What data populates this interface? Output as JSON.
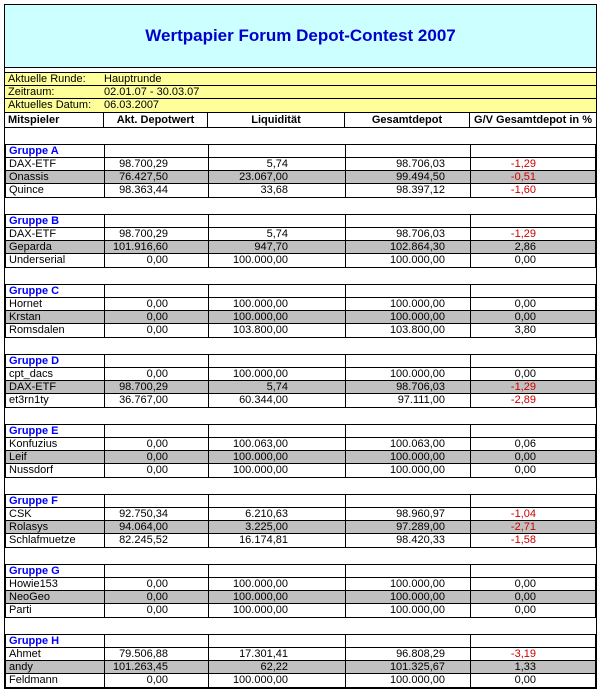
{
  "title": "Wertpapier Forum Depot-Contest 2007",
  "info": {
    "rows": [
      {
        "label": "Aktuelle Runde:",
        "value": "Hauptrunde"
      },
      {
        "label": "Zeitraum:",
        "value": "02.01.07 - 30.03.07"
      },
      {
        "label": "Aktuelles Datum:",
        "value": "06.03.2007"
      }
    ]
  },
  "columns": [
    "Mitspieler",
    "Akt. Depotwert",
    "Liquidität",
    "Gesamtdepot",
    "G/V Gesamtdepot in %"
  ],
  "groups": [
    {
      "name": "Gruppe A",
      "rows": [
        {
          "player": "DAX-ETF",
          "depotwert": "98.700,29",
          "liquiditaet": "5,74",
          "gesamtdepot": "98.706,03",
          "gv_percent": "-1,29"
        },
        {
          "player": "Onassis",
          "depotwert": "76.427,50",
          "liquiditaet": "23.067,00",
          "gesamtdepot": "99.494,50",
          "gv_percent": "-0,51"
        },
        {
          "player": "Quince",
          "depotwert": "98.363,44",
          "liquiditaet": "33,68",
          "gesamtdepot": "98.397,12",
          "gv_percent": "-1,60"
        }
      ]
    },
    {
      "name": "Gruppe B",
      "rows": [
        {
          "player": "DAX-ETF",
          "depotwert": "98.700,29",
          "liquiditaet": "5,74",
          "gesamtdepot": "98.706,03",
          "gv_percent": "-1,29"
        },
        {
          "player": "Geparda",
          "depotwert": "101.916,60",
          "liquiditaet": "947,70",
          "gesamtdepot": "102.864,30",
          "gv_percent": "2,86"
        },
        {
          "player": "Underserial",
          "depotwert": "0,00",
          "liquiditaet": "100.000,00",
          "gesamtdepot": "100.000,00",
          "gv_percent": "0,00"
        }
      ]
    },
    {
      "name": "Gruppe C",
      "rows": [
        {
          "player": "Hornet",
          "depotwert": "0,00",
          "liquiditaet": "100.000,00",
          "gesamtdepot": "100.000,00",
          "gv_percent": "0,00"
        },
        {
          "player": "Krstan",
          "depotwert": "0,00",
          "liquiditaet": "100.000,00",
          "gesamtdepot": "100.000,00",
          "gv_percent": "0,00"
        },
        {
          "player": "Romsdalen",
          "depotwert": "0,00",
          "liquiditaet": "103.800,00",
          "gesamtdepot": "103.800,00",
          "gv_percent": "3,80"
        }
      ]
    },
    {
      "name": "Gruppe D",
      "rows": [
        {
          "player": "cpt_dacs",
          "depotwert": "0,00",
          "liquiditaet": "100.000,00",
          "gesamtdepot": "100.000,00",
          "gv_percent": "0,00"
        },
        {
          "player": "DAX-ETF",
          "depotwert": "98.700,29",
          "liquiditaet": "5,74",
          "gesamtdepot": "98.706,03",
          "gv_percent": "-1,29"
        },
        {
          "player": "et3rn1ty",
          "depotwert": "36.767,00",
          "liquiditaet": "60.344,00",
          "gesamtdepot": "97.111,00",
          "gv_percent": "-2,89"
        }
      ]
    },
    {
      "name": "Gruppe E",
      "rows": [
        {
          "player": "Konfuzius",
          "depotwert": "0,00",
          "liquiditaet": "100.063,00",
          "gesamtdepot": "100.063,00",
          "gv_percent": "0,06"
        },
        {
          "player": "Leif",
          "depotwert": "0,00",
          "liquiditaet": "100.000,00",
          "gesamtdepot": "100.000,00",
          "gv_percent": "0,00"
        },
        {
          "player": "Nussdorf",
          "depotwert": "0,00",
          "liquiditaet": "100.000,00",
          "gesamtdepot": "100.000,00",
          "gv_percent": "0,00"
        }
      ]
    },
    {
      "name": "Gruppe F",
      "rows": [
        {
          "player": "CSK",
          "depotwert": "92.750,34",
          "liquiditaet": "6.210,63",
          "gesamtdepot": "98.960,97",
          "gv_percent": "-1,04"
        },
        {
          "player": "Rolasys",
          "depotwert": "94.064,00",
          "liquiditaet": "3.225,00",
          "gesamtdepot": "97.289,00",
          "gv_percent": "-2,71"
        },
        {
          "player": "Schlafmuetze",
          "depotwert": "82.245,52",
          "liquiditaet": "16.174,81",
          "gesamtdepot": "98.420,33",
          "gv_percent": "-1,58"
        }
      ]
    },
    {
      "name": "Gruppe G",
      "rows": [
        {
          "player": "Howie153",
          "depotwert": "0,00",
          "liquiditaet": "100.000,00",
          "gesamtdepot": "100.000,00",
          "gv_percent": "0,00"
        },
        {
          "player": "NeoGeo",
          "depotwert": "0,00",
          "liquiditaet": "100.000,00",
          "gesamtdepot": "100.000,00",
          "gv_percent": "0,00"
        },
        {
          "player": "Parti",
          "depotwert": "0,00",
          "liquiditaet": "100.000,00",
          "gesamtdepot": "100.000,00",
          "gv_percent": "0,00"
        }
      ]
    },
    {
      "name": "Gruppe H",
      "rows": [
        {
          "player": "Ahmet",
          "depotwert": "79.506,88",
          "liquiditaet": "17.301,41",
          "gesamtdepot": "96.808,29",
          "gv_percent": "-3,19"
        },
        {
          "player": "andy",
          "depotwert": "101.263,45",
          "liquiditaet": "62,22",
          "gesamtdepot": "101.325,67",
          "gv_percent": "1,33"
        },
        {
          "player": "Feldmann",
          "depotwert": "0,00",
          "liquiditaet": "100.000,00",
          "gesamtdepot": "100.000,00",
          "gv_percent": "0,00"
        }
      ]
    }
  ],
  "colors": {
    "title_text": "#0000cc",
    "title_bg": "#ccffff",
    "info_bg": "#ffff99",
    "group_label": "#0000ff",
    "row_alt_bg": "#c0c0c0",
    "negative_value": "#cc0000"
  }
}
